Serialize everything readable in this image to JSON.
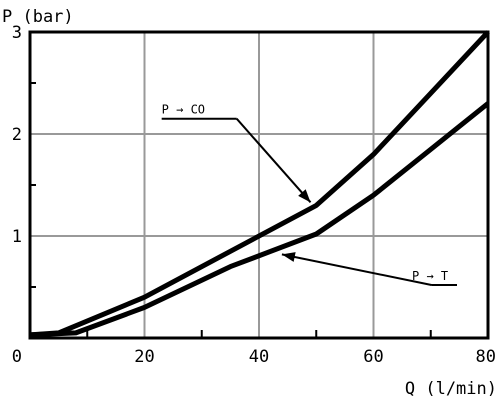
{
  "chart_data": {
    "type": "line",
    "ylabel": "P (bar)",
    "xlabel": "Q (l/min)",
    "xlim": [
      0,
      80
    ],
    "ylim": [
      0,
      3
    ],
    "x_ticks": [
      0,
      20,
      40,
      60,
      80
    ],
    "x_tick_labels": [
      "0",
      "20",
      "40",
      "60",
      "80"
    ],
    "y_ticks": [
      1,
      2,
      3
    ],
    "y_tick_labels": [
      "1",
      "2",
      "3"
    ],
    "grid": true,
    "series": [
      {
        "name": "P → CO",
        "x": [
          0,
          5,
          20,
          35,
          50,
          60,
          70,
          80
        ],
        "y": [
          0.03,
          0.05,
          0.4,
          0.85,
          1.3,
          1.8,
          2.4,
          3.0
        ]
      },
      {
        "name": "P → T",
        "x": [
          0,
          8,
          20,
          35,
          50,
          60,
          70,
          80
        ],
        "y": [
          0.03,
          0.05,
          0.3,
          0.7,
          1.02,
          1.4,
          1.85,
          2.3
        ]
      }
    ],
    "annotations": [
      {
        "text": "P → CO",
        "arrow_from": [
          23,
          2.15
        ],
        "arrow_to": [
          49,
          1.33
        ]
      },
      {
        "text": "P → T",
        "arrow_from": [
          71,
          0.52
        ],
        "arrow_to": [
          44,
          0.82
        ]
      }
    ]
  }
}
